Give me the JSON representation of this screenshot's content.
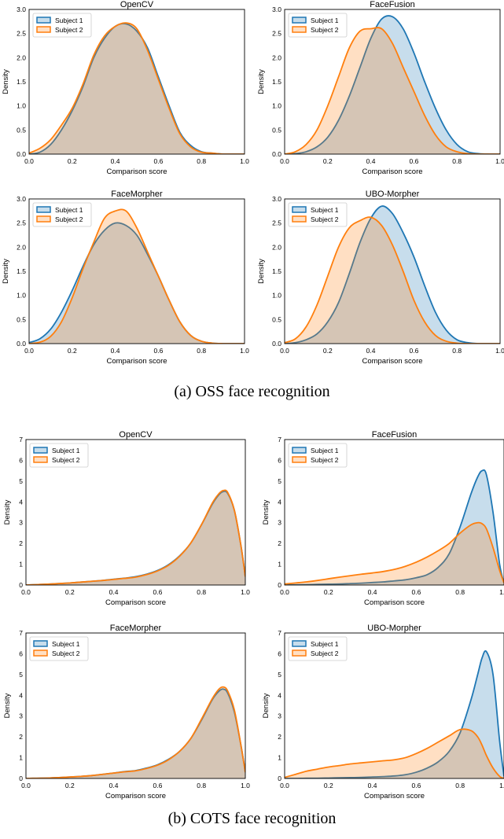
{
  "colors": {
    "subject1": "#1f77b4",
    "subject1_fill": "#1f77b4",
    "subject2": "#ff7f0e",
    "subject2_fill": "#ff7f0e",
    "axis": "#000000",
    "text": "#000000"
  },
  "captions": {
    "a": "(a) OSS face recognition",
    "b": "(b) COTS face recognition"
  },
  "chart_data": [
    {
      "type": "area",
      "title": "OpenCV",
      "xlabel": "Comparison score",
      "ylabel": "Density",
      "xlim": [
        0,
        1
      ],
      "ylim": [
        0,
        3
      ],
      "xticks": [
        "0.0",
        "0.2",
        "0.4",
        "0.6",
        "0.8",
        "1.0"
      ],
      "yticks": [
        "0.0",
        "0.5",
        "1.0",
        "1.5",
        "2.0",
        "2.5",
        "3.0"
      ],
      "legend": "top-left",
      "x": [
        0,
        0.05,
        0.1,
        0.15,
        0.2,
        0.25,
        0.3,
        0.35,
        0.4,
        0.45,
        0.5,
        0.55,
        0.6,
        0.65,
        0.7,
        0.75,
        0.8,
        0.85,
        0.9,
        0.95,
        1.0
      ],
      "series": [
        {
          "name": "Subject 1",
          "values": [
            0.0,
            0.04,
            0.2,
            0.5,
            0.9,
            1.4,
            2.0,
            2.4,
            2.65,
            2.7,
            2.55,
            2.2,
            1.6,
            1.0,
            0.45,
            0.18,
            0.05,
            0.02,
            0.0,
            0.0,
            0.0
          ]
        },
        {
          "name": "Subject 2",
          "values": [
            0.02,
            0.12,
            0.3,
            0.6,
            0.95,
            1.45,
            2.05,
            2.45,
            2.65,
            2.72,
            2.6,
            2.15,
            1.55,
            0.95,
            0.42,
            0.15,
            0.04,
            0.02,
            0.0,
            0.0,
            0.0
          ]
        }
      ]
    },
    {
      "type": "area",
      "title": "FaceFusion",
      "xlabel": "Comparison score",
      "ylabel": "Density",
      "xlim": [
        0,
        1
      ],
      "ylim": [
        0,
        3
      ],
      "xticks": [
        "0.0",
        "0.2",
        "0.4",
        "0.6",
        "0.8",
        "1.0"
      ],
      "yticks": [
        "0.0",
        "0.5",
        "1.0",
        "1.5",
        "2.0",
        "2.5",
        "3.0"
      ],
      "legend": "top-left",
      "x": [
        0,
        0.05,
        0.1,
        0.15,
        0.2,
        0.25,
        0.3,
        0.35,
        0.4,
        0.45,
        0.5,
        0.55,
        0.6,
        0.65,
        0.7,
        0.75,
        0.8,
        0.85,
        0.9,
        0.95,
        1.0
      ],
      "series": [
        {
          "name": "Subject 1",
          "values": [
            0.0,
            0.01,
            0.05,
            0.15,
            0.35,
            0.7,
            1.2,
            1.8,
            2.4,
            2.8,
            2.85,
            2.6,
            2.1,
            1.5,
            0.95,
            0.5,
            0.2,
            0.05,
            0.01,
            0.0,
            0.0
          ]
        },
        {
          "name": "Subject 2",
          "values": [
            0.0,
            0.05,
            0.2,
            0.5,
            1.0,
            1.6,
            2.2,
            2.55,
            2.6,
            2.6,
            2.3,
            1.8,
            1.3,
            0.8,
            0.4,
            0.15,
            0.05,
            0.01,
            0.0,
            0.0,
            0.0
          ]
        }
      ]
    },
    {
      "type": "area",
      "title": "FaceMorpher",
      "xlabel": "Comparison score",
      "ylabel": "Density",
      "xlim": [
        0,
        1
      ],
      "ylim": [
        0,
        3
      ],
      "xticks": [
        "0.0",
        "0.2",
        "0.4",
        "0.6",
        "0.8",
        "1.0"
      ],
      "yticks": [
        "0.0",
        "0.5",
        "1.0",
        "1.5",
        "2.0",
        "2.5",
        "3.0"
      ],
      "legend": "top-left",
      "x": [
        0,
        0.05,
        0.1,
        0.15,
        0.2,
        0.25,
        0.3,
        0.35,
        0.4,
        0.45,
        0.5,
        0.55,
        0.6,
        0.65,
        0.7,
        0.75,
        0.8,
        0.85,
        0.9,
        0.95,
        1.0
      ],
      "series": [
        {
          "name": "Subject 1",
          "values": [
            0.02,
            0.1,
            0.3,
            0.65,
            1.1,
            1.6,
            2.05,
            2.35,
            2.5,
            2.45,
            2.25,
            1.85,
            1.4,
            0.9,
            0.45,
            0.17,
            0.05,
            0.01,
            0.0,
            0.0,
            0.0
          ]
        },
        {
          "name": "Subject 2",
          "values": [
            0.0,
            0.03,
            0.15,
            0.45,
            0.95,
            1.55,
            2.1,
            2.6,
            2.75,
            2.75,
            2.4,
            1.9,
            1.4,
            0.9,
            0.45,
            0.17,
            0.05,
            0.01,
            0.0,
            0.0,
            0.0
          ]
        }
      ]
    },
    {
      "type": "area",
      "title": "UBO-Morpher",
      "xlabel": "Comparison score",
      "ylabel": "Density",
      "xlim": [
        0,
        1
      ],
      "ylim": [
        0,
        3
      ],
      "xticks": [
        "0.0",
        "0.2",
        "0.4",
        "0.6",
        "0.8",
        "1.0"
      ],
      "yticks": [
        "0.0",
        "0.5",
        "1.0",
        "1.5",
        "2.0",
        "2.5",
        "3.0"
      ],
      "legend": "top-left",
      "x": [
        0,
        0.05,
        0.1,
        0.15,
        0.2,
        0.25,
        0.3,
        0.35,
        0.4,
        0.45,
        0.5,
        0.55,
        0.6,
        0.65,
        0.7,
        0.75,
        0.8,
        0.85,
        0.9,
        0.95,
        1.0
      ],
      "series": [
        {
          "name": "Subject 1",
          "values": [
            0.0,
            0.02,
            0.08,
            0.2,
            0.45,
            0.85,
            1.45,
            2.1,
            2.6,
            2.85,
            2.7,
            2.3,
            1.8,
            1.2,
            0.65,
            0.28,
            0.08,
            0.02,
            0.0,
            0.0,
            0.0
          ]
        },
        {
          "name": "Subject 2",
          "values": [
            0.02,
            0.1,
            0.35,
            0.8,
            1.4,
            2.0,
            2.4,
            2.55,
            2.62,
            2.45,
            2.05,
            1.5,
            0.9,
            0.45,
            0.17,
            0.05,
            0.01,
            0.0,
            0.0,
            0.0,
            0.0
          ]
        }
      ]
    },
    {
      "type": "area",
      "title": "OpenCV",
      "xlabel": "Comparison score",
      "ylabel": "Density",
      "xlim": [
        0,
        1
      ],
      "ylim": [
        0,
        7
      ],
      "xticks": [
        "0.0",
        "0.2",
        "0.4",
        "0.6",
        "0.8",
        "1.0"
      ],
      "yticks": [
        "0",
        "1",
        "2",
        "3",
        "4",
        "5",
        "6",
        "7"
      ],
      "legend": "top-left",
      "x": [
        0,
        0.05,
        0.1,
        0.15,
        0.2,
        0.25,
        0.3,
        0.35,
        0.4,
        0.45,
        0.5,
        0.55,
        0.6,
        0.65,
        0.7,
        0.75,
        0.8,
        0.85,
        0.88,
        0.9,
        0.92,
        0.95,
        0.98,
        1.0
      ],
      "series": [
        {
          "name": "Subject 1",
          "values": [
            0.0,
            0.02,
            0.04,
            0.07,
            0.1,
            0.14,
            0.18,
            0.22,
            0.28,
            0.33,
            0.4,
            0.52,
            0.7,
            0.98,
            1.4,
            2.0,
            2.9,
            3.9,
            4.35,
            4.5,
            4.4,
            3.6,
            1.9,
            0.4
          ]
        },
        {
          "name": "Subject 2",
          "values": [
            0.0,
            0.02,
            0.04,
            0.07,
            0.1,
            0.14,
            0.18,
            0.22,
            0.27,
            0.32,
            0.38,
            0.5,
            0.68,
            0.95,
            1.38,
            2.0,
            2.9,
            3.95,
            4.4,
            4.55,
            4.45,
            3.6,
            1.9,
            0.4
          ]
        }
      ]
    },
    {
      "type": "area",
      "title": "FaceFusion",
      "xlabel": "Comparison score",
      "ylabel": "Density",
      "xlim": [
        0,
        1
      ],
      "ylim": [
        0,
        7
      ],
      "xticks": [
        "0.0",
        "0.2",
        "0.4",
        "0.6",
        "0.8",
        "1.0"
      ],
      "yticks": [
        "0",
        "1",
        "2",
        "3",
        "4",
        "5",
        "6",
        "7"
      ],
      "legend": "top-left",
      "x": [
        0,
        0.05,
        0.1,
        0.15,
        0.2,
        0.25,
        0.3,
        0.35,
        0.4,
        0.45,
        0.5,
        0.55,
        0.6,
        0.65,
        0.7,
        0.75,
        0.8,
        0.85,
        0.88,
        0.9,
        0.92,
        0.95,
        0.98,
        1.0
      ],
      "series": [
        {
          "name": "Subject 1",
          "values": [
            0.0,
            0.01,
            0.02,
            0.03,
            0.04,
            0.05,
            0.07,
            0.09,
            0.12,
            0.15,
            0.2,
            0.25,
            0.35,
            0.5,
            0.85,
            1.5,
            2.8,
            4.4,
            5.2,
            5.5,
            5.3,
            3.5,
            1.0,
            0.1
          ]
        },
        {
          "name": "Subject 2",
          "values": [
            0.05,
            0.1,
            0.15,
            0.22,
            0.3,
            0.38,
            0.45,
            0.52,
            0.58,
            0.65,
            0.75,
            0.9,
            1.1,
            1.35,
            1.65,
            2.0,
            2.5,
            2.9,
            3.0,
            2.95,
            2.7,
            1.8,
            0.7,
            0.1
          ]
        }
      ]
    },
    {
      "type": "area",
      "title": "FaceMorpher",
      "xlabel": "Comparison score",
      "ylabel": "Density",
      "xlim": [
        0,
        1
      ],
      "ylim": [
        0,
        7
      ],
      "xticks": [
        "0.0",
        "0.2",
        "0.4",
        "0.6",
        "0.8",
        "1.0"
      ],
      "yticks": [
        "0",
        "1",
        "2",
        "3",
        "4",
        "5",
        "6",
        "7"
      ],
      "legend": "top-left",
      "x": [
        0,
        0.05,
        0.1,
        0.15,
        0.2,
        0.25,
        0.3,
        0.35,
        0.4,
        0.45,
        0.5,
        0.55,
        0.6,
        0.65,
        0.7,
        0.75,
        0.8,
        0.85,
        0.88,
        0.9,
        0.92,
        0.95,
        0.98,
        1.0
      ],
      "series": [
        {
          "name": "Subject 1",
          "values": [
            0.0,
            0.01,
            0.02,
            0.04,
            0.07,
            0.1,
            0.14,
            0.2,
            0.26,
            0.33,
            0.38,
            0.5,
            0.66,
            0.92,
            1.3,
            1.9,
            2.8,
            3.8,
            4.2,
            4.3,
            4.1,
            3.2,
            1.6,
            0.3
          ]
        },
        {
          "name": "Subject 2",
          "values": [
            0.0,
            0.01,
            0.02,
            0.04,
            0.07,
            0.1,
            0.14,
            0.2,
            0.26,
            0.32,
            0.37,
            0.48,
            0.64,
            0.9,
            1.3,
            1.9,
            2.85,
            3.85,
            4.3,
            4.4,
            4.2,
            3.3,
            1.6,
            0.3
          ]
        }
      ]
    },
    {
      "type": "area",
      "title": "UBO-Morpher",
      "xlabel": "Comparison score",
      "ylabel": "Density",
      "xlim": [
        0,
        1
      ],
      "ylim": [
        0,
        7
      ],
      "xticks": [
        "0.0",
        "0.2",
        "0.4",
        "0.6",
        "0.8",
        "1.0"
      ],
      "yticks": [
        "0",
        "1",
        "2",
        "3",
        "4",
        "5",
        "6",
        "7"
      ],
      "legend": "top-left",
      "x": [
        0,
        0.05,
        0.1,
        0.15,
        0.2,
        0.25,
        0.3,
        0.35,
        0.4,
        0.45,
        0.5,
        0.55,
        0.6,
        0.65,
        0.7,
        0.75,
        0.8,
        0.85,
        0.88,
        0.9,
        0.92,
        0.95,
        0.98,
        1.0
      ],
      "series": [
        {
          "name": "Subject 1",
          "values": [
            0.0,
            0.0,
            0.01,
            0.01,
            0.02,
            0.03,
            0.04,
            0.05,
            0.07,
            0.09,
            0.12,
            0.18,
            0.3,
            0.5,
            0.8,
            1.3,
            2.2,
            3.8,
            5.0,
            5.8,
            6.1,
            5.0,
            1.8,
            0.1
          ]
        },
        {
          "name": "Subject 2",
          "values": [
            0.05,
            0.2,
            0.35,
            0.45,
            0.55,
            0.62,
            0.7,
            0.75,
            0.8,
            0.85,
            0.9,
            1.0,
            1.2,
            1.45,
            1.75,
            2.05,
            2.35,
            2.3,
            2.0,
            1.6,
            1.1,
            0.5,
            0.1,
            0.0
          ]
        }
      ]
    }
  ]
}
